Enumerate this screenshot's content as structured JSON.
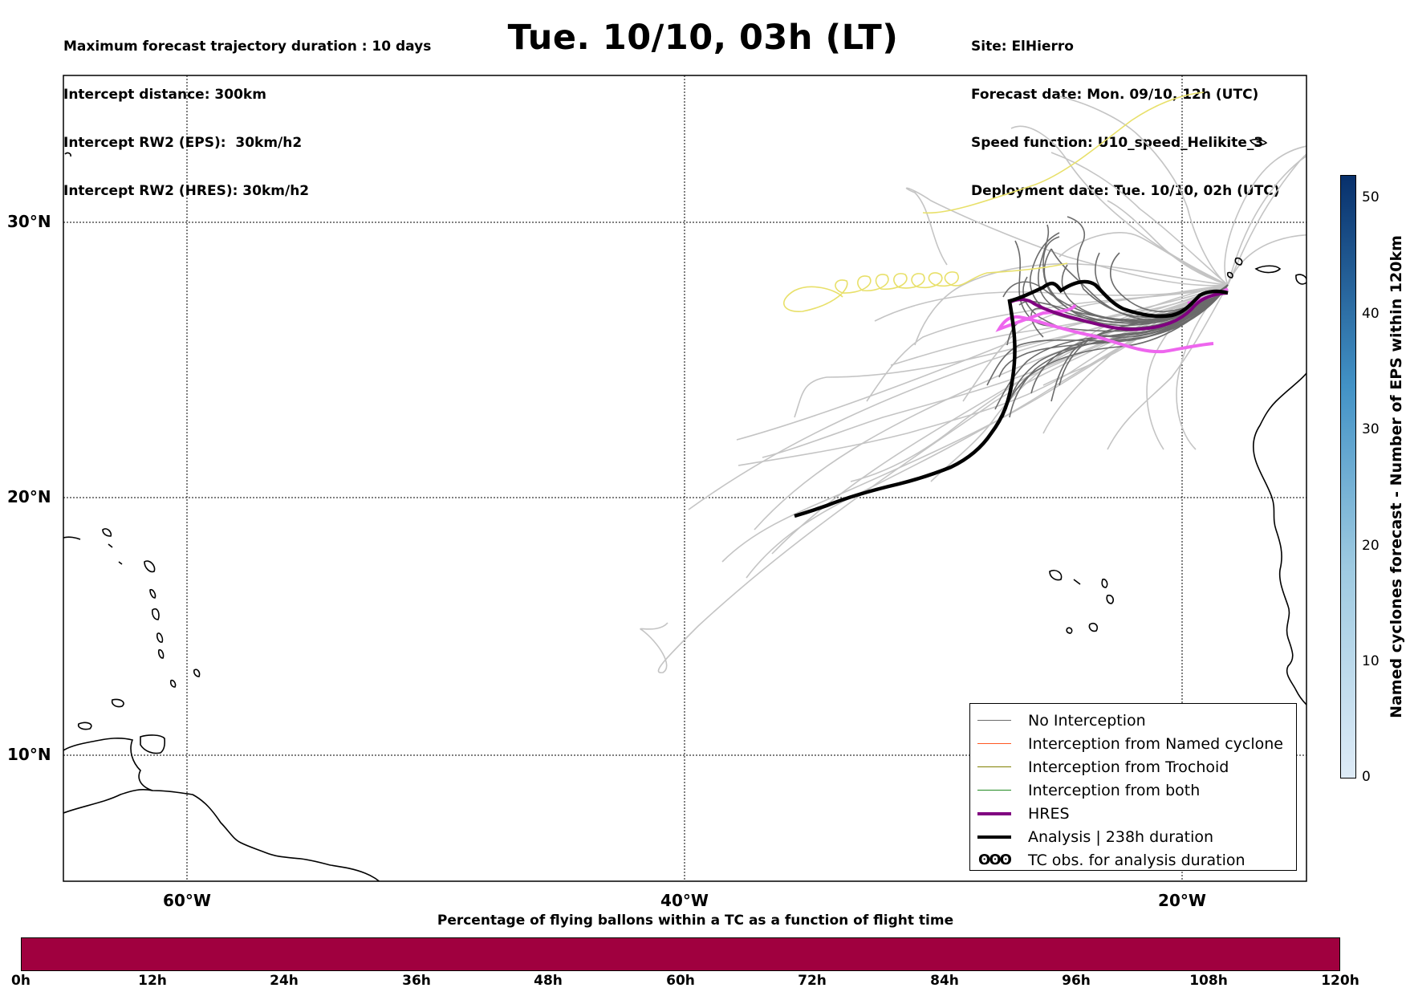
{
  "header": {
    "title": "Tue. 10/10, 03h (LT)",
    "left_info": [
      "Maximum forecast trajectory duration : 10 days",
      "Intercept distance: 300km",
      "Intercept RW2 (EPS):  30km/h2",
      "Intercept RW2 (HRES): 30km/h2"
    ],
    "right_info": [
      "Site: ElHierro",
      "Forecast date: Mon. 09/10, 12h (UTC)",
      "Speed function: U10_speed_Helikite_3",
      "Deployment date: Tue. 10/10, 02h (UTC)"
    ]
  },
  "map": {
    "lon_range": [
      -65,
      -15
    ],
    "lat_range": [
      5,
      35
    ],
    "lat_labels": [
      {
        "value": 30,
        "label": "30°N"
      },
      {
        "value": 20,
        "label": "20°N"
      },
      {
        "value": 10,
        "label": "10°N"
      }
    ],
    "lon_labels": [
      {
        "value": -60,
        "label": "60°W"
      },
      {
        "value": -40,
        "label": "40°W"
      },
      {
        "value": -20,
        "label": "20°W"
      }
    ],
    "colors": {
      "no_interception": "#6b6b6b",
      "no_interception_light": "#c4c4c4",
      "named_cyclone": "#ff5722",
      "trochoid": "#808000",
      "both": "#228b22",
      "hres": "#800080",
      "analysis": "#000000",
      "pink_track": "#ee66ee",
      "yellow_track": "#e8e06a"
    }
  },
  "legend": {
    "items": [
      {
        "label": "No Interception",
        "color": "#6b6b6b",
        "style": "thin"
      },
      {
        "label": "Interception from Named cyclone",
        "color": "#ff5722",
        "style": "thin"
      },
      {
        "label": "Interception from Trochoid",
        "color": "#808000",
        "style": "thin"
      },
      {
        "label": "Interception from both",
        "color": "#228b22",
        "style": "thin"
      },
      {
        "label": "HRES",
        "color": "#800080",
        "style": "thick"
      },
      {
        "label": "Analysis | 238h duration",
        "color": "#000000",
        "style": "thick"
      },
      {
        "label": "TC obs. for analysis duration",
        "color": "#000000",
        "style": "symbol",
        "symbol": "ʘʘʘ"
      }
    ]
  },
  "colorbar_right": {
    "label": "Named cyclones forecast - Number of EPS within 120km",
    "ticks": [
      "0",
      "10",
      "20",
      "30",
      "40",
      "50"
    ],
    "range": [
      0,
      52
    ],
    "colors": [
      "#deebf7",
      "#08306b"
    ]
  },
  "colorbar_bottom": {
    "title": "Percentage of flying ballons within a TC as a function of flight time",
    "ticks": [
      "0h",
      "12h",
      "24h",
      "36h",
      "48h",
      "60h",
      "72h",
      "84h",
      "96h",
      "108h",
      "120h"
    ],
    "color": "#a0003f"
  }
}
